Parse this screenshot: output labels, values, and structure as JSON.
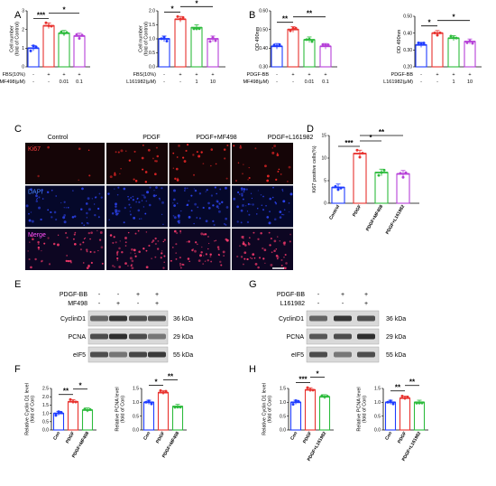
{
  "panel_letters": [
    "A",
    "B",
    "C",
    "D",
    "E",
    "F",
    "G",
    "H"
  ],
  "colors": {
    "ctrl": "#1f3cff",
    "treat": "#e8322e",
    "drug1": "#2dbb3c",
    "drug2": "#b640d8",
    "blot_bg": "#d9d9d9",
    "micro_bg": "#0b0b14"
  },
  "panel_A": {
    "left": {
      "ylabel": "Cell number\n(fold of Control)",
      "rows": [
        {
          "label": "FBS(10%)",
          "values": [
            "-",
            "+",
            "+",
            "+"
          ]
        },
        {
          "label": "MF498(μM)",
          "values": [
            "-",
            "-",
            "0.01",
            "0.1"
          ]
        }
      ]
    },
    "right": {
      "ylabel": "Cell number\n(fold of Control)",
      "rows": [
        {
          "label": "FBS(10%)",
          "values": [
            "-",
            "+",
            "+",
            "+"
          ]
        },
        {
          "label": "L161982(μM)",
          "values": [
            "-",
            "-",
            "1",
            "10"
          ]
        }
      ]
    }
  },
  "panel_B": {
    "left": {
      "ylabel": "OD 490nm",
      "rows": [
        {
          "label": "PDGF-BB",
          "values": [
            "-",
            "+",
            "+",
            "+"
          ]
        },
        {
          "label": "MF498(μM)",
          "values": [
            "-",
            "-",
            "0.01",
            "0.1"
          ]
        }
      ]
    },
    "right": {
      "ylabel": "OD 490nm",
      "rows": [
        {
          "label": "PDGF-BB",
          "values": [
            "-",
            "+",
            "+",
            "+"
          ]
        },
        {
          "label": "L161982(μM)",
          "values": [
            "-",
            "-",
            "1",
            "10"
          ]
        }
      ]
    }
  },
  "panel_C": {
    "columns": [
      "Control",
      "PDGF",
      "PDGF+MF498",
      "PDGF+L161982"
    ],
    "rows": [
      "Ki67",
      "DAPI",
      "Merge"
    ]
  },
  "panel_D": {
    "ylabel": "Ki67 positive cells(%)",
    "categories": [
      "Control",
      "PDGF",
      "PDGF+MF498",
      "PDGF+L161982"
    ]
  },
  "panel_E": {
    "rows": [
      {
        "label": "PDGF-BB",
        "values": [
          "-",
          "-",
          "+",
          "+"
        ]
      },
      {
        "label": "MF498",
        "values": [
          "-",
          "+",
          "-",
          "+"
        ]
      }
    ],
    "proteins": [
      {
        "name": "CyclinD1",
        "kda": "36 kDa"
      },
      {
        "name": "PCNA",
        "kda": "29 kDa"
      },
      {
        "name": "eIF5",
        "kda": "55 kDa"
      }
    ]
  },
  "panel_G": {
    "rows": [
      {
        "label": "PDGF-BB",
        "values": [
          "-",
          "+",
          "+"
        ]
      },
      {
        "label": "L161982",
        "values": [
          "-",
          "-",
          "+"
        ]
      }
    ],
    "proteins": [
      {
        "name": "CyclinD1",
        "kda": "36 kDa"
      },
      {
        "name": "PCNA",
        "kda": "29 kDa"
      },
      {
        "name": "eIF5",
        "kda": "55 kDa"
      }
    ]
  },
  "panel_F": {
    "left": {
      "ylabel": "Relative Cyclin D1 level\n(fold of Con)",
      "categories": [
        "Con",
        "PDGF",
        "PDGF+MF498"
      ]
    },
    "right": {
      "ylabel": "Relative PCNA level\n(fold of Con)",
      "categories": [
        "Con",
        "PDGF",
        "PDGF+MF498"
      ]
    }
  },
  "panel_H": {
    "left": {
      "ylabel": "Relative Cyclin D1 level\n(fold of Con)",
      "categories": [
        "Con",
        "PDGF",
        "PDGF+L161982"
      ]
    },
    "right": {
      "ylabel": "Relative PCNA level\n(fold of Con)",
      "categories": [
        "Con",
        "PDGF",
        "PDGF+L161982"
      ]
    }
  },
  "chart_data": [
    {
      "id": "A-left",
      "type": "bar",
      "categories": [
        "1",
        "2",
        "3",
        "4"
      ],
      "values": [
        1.0,
        2.2,
        1.8,
        1.65
      ],
      "ylim": [
        0,
        3
      ],
      "yticks": [
        "0",
        "1",
        "2",
        "3"
      ],
      "colors": [
        "#1f3cff",
        "#e8322e",
        "#2dbb3c",
        "#b640d8"
      ],
      "sig": [
        {
          "from": 0,
          "to": 1,
          "label": "***"
        },
        {
          "from": 1,
          "to": 3,
          "label": "*"
        }
      ]
    },
    {
      "id": "A-right",
      "type": "bar",
      "categories": [
        "1",
        "2",
        "3",
        "4"
      ],
      "values": [
        1.0,
        1.7,
        1.4,
        1.0
      ],
      "ylim": [
        0,
        2.0
      ],
      "yticks": [
        "0.0",
        "0.5",
        "1.0",
        "1.5",
        "2.0"
      ],
      "colors": [
        "#1f3cff",
        "#e8322e",
        "#2dbb3c",
        "#b640d8"
      ],
      "sig": [
        {
          "from": 0,
          "to": 1,
          "label": "*"
        },
        {
          "from": 1,
          "to": 3,
          "label": "*"
        }
      ]
    },
    {
      "id": "B-left",
      "type": "bar",
      "categories": [
        "1",
        "2",
        "3",
        "4"
      ],
      "values": [
        0.41,
        0.5,
        0.445,
        0.41
      ],
      "ylim": [
        0.3,
        0.6
      ],
      "yticks": [
        "0.30",
        "0.40",
        "0.50",
        "0.60"
      ],
      "colors": [
        "#1f3cff",
        "#e8322e",
        "#2dbb3c",
        "#b640d8"
      ],
      "sig": [
        {
          "from": 0,
          "to": 1,
          "label": "**"
        },
        {
          "from": 1,
          "to": 3,
          "label": "**"
        }
      ]
    },
    {
      "id": "B-right",
      "type": "bar",
      "categories": [
        "1",
        "2",
        "3",
        "4"
      ],
      "values": [
        0.33,
        0.4,
        0.37,
        0.35
      ],
      "ylim": [
        0.2,
        0.5
      ],
      "yticks": [
        "0.20",
        "0.30",
        "0.40",
        "0.50"
      ],
      "colors": [
        "#1f3cff",
        "#e8322e",
        "#2dbb3c",
        "#b640d8"
      ],
      "sig": [
        {
          "from": 0,
          "to": 1,
          "label": "*"
        },
        {
          "from": 1,
          "to": 3,
          "label": "*"
        }
      ]
    },
    {
      "id": "D",
      "type": "bar",
      "categories": [
        "Control",
        "PDGF",
        "PDGF+MF498",
        "PDGF+L161982"
      ],
      "values": [
        3.5,
        11,
        6.8,
        6.5
      ],
      "ylim": [
        0,
        15
      ],
      "yticks": [
        "0",
        "5",
        "10",
        "15"
      ],
      "colors": [
        "#1f3cff",
        "#e8322e",
        "#2dbb3c",
        "#b640d8"
      ],
      "sig": [
        {
          "from": 0,
          "to": 1,
          "label": "***"
        },
        {
          "from": 1,
          "to": 2,
          "label": "*"
        },
        {
          "from": 1,
          "to": 3,
          "label": "**"
        }
      ]
    },
    {
      "id": "F-left",
      "type": "bar",
      "categories": [
        "Con",
        "PDGF",
        "PDGF+MF498"
      ],
      "values": [
        1.0,
        1.7,
        1.2
      ],
      "ylim": [
        0,
        2.5
      ],
      "yticks": [
        "0.0",
        "0.5",
        "1.0",
        "1.5",
        "2.0",
        "2.5"
      ],
      "colors": [
        "#1f3cff",
        "#e8322e",
        "#2dbb3c"
      ],
      "sig": [
        {
          "from": 0,
          "to": 1,
          "label": "**"
        },
        {
          "from": 1,
          "to": 2,
          "label": "*"
        }
      ]
    },
    {
      "id": "F-right",
      "type": "bar",
      "categories": [
        "Con",
        "PDGF",
        "PDGF+MF498"
      ],
      "values": [
        1.0,
        1.35,
        0.85
      ],
      "ylim": [
        0,
        1.5
      ],
      "yticks": [
        "0.0",
        "0.5",
        "1.0",
        "1.5"
      ],
      "colors": [
        "#1f3cff",
        "#e8322e",
        "#2dbb3c"
      ],
      "sig": [
        {
          "from": 0,
          "to": 1,
          "label": "*"
        },
        {
          "from": 1,
          "to": 2,
          "label": "**"
        }
      ]
    },
    {
      "id": "H-left",
      "type": "bar",
      "categories": [
        "Con",
        "PDGF",
        "PDGF+L161982"
      ],
      "values": [
        1.0,
        1.45,
        1.2
      ],
      "ylim": [
        0,
        1.5
      ],
      "yticks": [
        "0.0",
        "0.5",
        "1.0",
        "1.5"
      ],
      "colors": [
        "#1f3cff",
        "#e8322e",
        "#2dbb3c"
      ],
      "sig": [
        {
          "from": 0,
          "to": 1,
          "label": "***"
        },
        {
          "from": 1,
          "to": 2,
          "label": "*"
        }
      ]
    },
    {
      "id": "H-right",
      "type": "bar",
      "categories": [
        "Con",
        "PDGF",
        "PDGF+L161982"
      ],
      "values": [
        1.0,
        1.15,
        1.0
      ],
      "ylim": [
        0,
        1.5
      ],
      "yticks": [
        "0.0",
        "0.5",
        "1.0",
        "1.5"
      ],
      "colors": [
        "#1f3cff",
        "#e8322e",
        "#2dbb3c"
      ],
      "sig": [
        {
          "from": 0,
          "to": 1,
          "label": "**"
        },
        {
          "from": 1,
          "to": 2,
          "label": "**"
        }
      ]
    }
  ]
}
